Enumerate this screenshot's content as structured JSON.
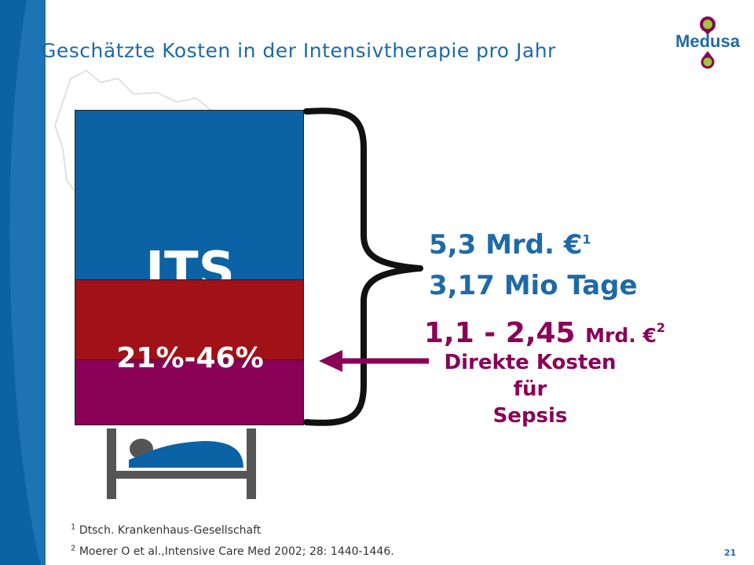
{
  "slide": {
    "title": "Geschätzte Kosten in der Intensivtherapie pro Jahr",
    "page_number": "21"
  },
  "logo": {
    "text": "Medusa"
  },
  "bar": {
    "its_label": "ITS",
    "sepsis_share_label": "21%-46%"
  },
  "figures": {
    "cost": "5,3 Mrd. €",
    "cost_ref": "1",
    "days": "3,17 Mio Tage",
    "sepsis_range": "1,1 - 2,45",
    "sepsis_unit": "Mrd. €",
    "sepsis_ref": "2",
    "sepsis_desc_line1": "Direkte Kosten für",
    "sepsis_desc_line2": "Sepsis"
  },
  "footnotes": [
    {
      "ref": "1",
      "text": "Dtsch. Krankenhaus-Gesellschaft"
    },
    {
      "ref": "2",
      "text": "Moerer O et al.,Intensive Care Med 2002; 28: 1440-1446."
    }
  ],
  "colors": {
    "blue": "#0b62a5",
    "red": "#a11118",
    "purple": "#8a0057",
    "text_blue": "#1f6aa6"
  },
  "icons": [
    "hospital-bed-icon",
    "arrow-left-icon",
    "curly-brace",
    "map-outline",
    "medusa-logo-pin-icon"
  ]
}
